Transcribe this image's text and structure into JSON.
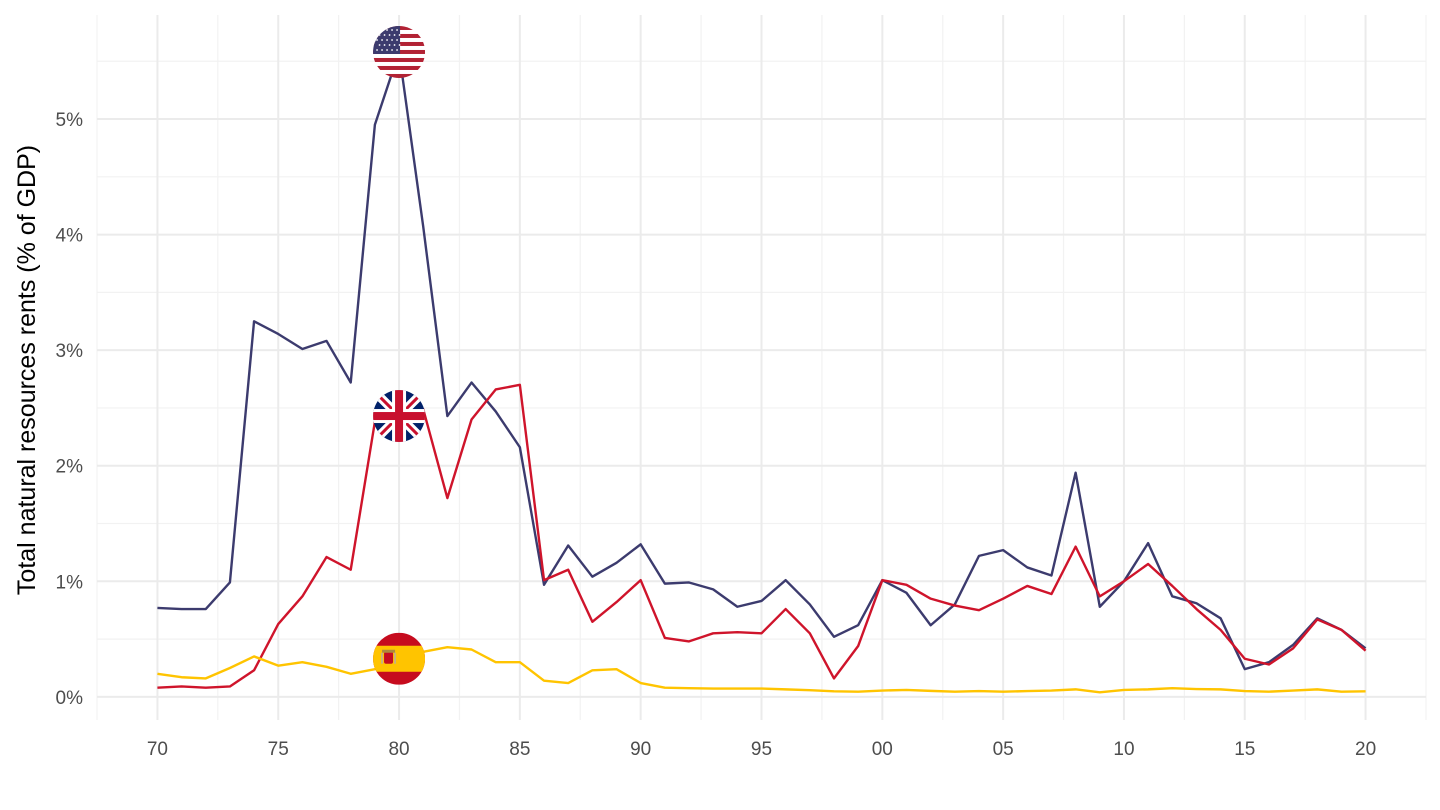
{
  "chart_data": {
    "type": "line",
    "ylabel": "Total natural resources rents (% of GDP)",
    "xlabel": "",
    "x": [
      1970,
      1971,
      1972,
      1973,
      1974,
      1975,
      1976,
      1977,
      1978,
      1979,
      1980,
      1981,
      1982,
      1983,
      1984,
      1985,
      1986,
      1987,
      1988,
      1989,
      1990,
      1991,
      1992,
      1993,
      1994,
      1995,
      1996,
      1997,
      1998,
      1999,
      2000,
      2001,
      2002,
      2003,
      2004,
      2005,
      2006,
      2007,
      2008,
      2009,
      2010,
      2011,
      2012,
      2013,
      2014,
      2015,
      2016,
      2017,
      2018,
      2019,
      2020
    ],
    "xlim": [
      1967.5,
      2022.5
    ],
    "ylim": [
      -0.2,
      5.9
    ],
    "x_ticks": [
      1970,
      1975,
      1980,
      1985,
      1990,
      1995,
      2000,
      2005,
      2010,
      2015,
      2020
    ],
    "x_tick_labels": [
      "70",
      "75",
      "80",
      "85",
      "90",
      "95",
      "00",
      "05",
      "10",
      "15",
      "20"
    ],
    "y_ticks": [
      0,
      1,
      2,
      3,
      4,
      5
    ],
    "y_tick_labels": [
      "0%",
      "1%",
      "2%",
      "3%",
      "4%",
      "5%"
    ],
    "grid": true,
    "legend": "flag icons placed on lines at 1980",
    "flag_x": 1980,
    "series": [
      {
        "flag": "us-flag-icon",
        "color": "#3c3b6e",
        "values": [
          0.77,
          0.76,
          0.76,
          0.99,
          3.25,
          3.14,
          3.01,
          3.08,
          2.72,
          4.95,
          5.58,
          4.07,
          2.43,
          2.72,
          2.47,
          2.16,
          0.97,
          1.31,
          1.04,
          1.16,
          1.32,
          0.98,
          0.99,
          0.93,
          0.78,
          0.83,
          1.01,
          0.8,
          0.52,
          0.62,
          1.01,
          0.9,
          0.62,
          0.8,
          1.22,
          1.27,
          1.12,
          1.05,
          1.94,
          0.78,
          1.0,
          1.33,
          0.87,
          0.81,
          0.68,
          0.24,
          0.3,
          0.45,
          0.68,
          0.58,
          0.42
        ]
      },
      {
        "flag": "uk-flag-icon",
        "color": "#cf142b",
        "values": [
          0.08,
          0.09,
          0.08,
          0.09,
          0.23,
          0.63,
          0.87,
          1.21,
          1.1,
          2.38,
          2.43,
          2.49,
          1.72,
          2.4,
          2.66,
          2.7,
          1.01,
          1.1,
          0.65,
          0.82,
          1.01,
          0.51,
          0.48,
          0.55,
          0.56,
          0.55,
          0.76,
          0.55,
          0.16,
          0.44,
          1.01,
          0.97,
          0.85,
          0.79,
          0.75,
          0.85,
          0.96,
          0.89,
          1.3,
          0.87,
          1.0,
          1.15,
          0.96,
          0.76,
          0.58,
          0.33,
          0.28,
          0.42,
          0.67,
          0.58,
          0.4
        ]
      },
      {
        "flag": "es-flag-icon",
        "color": "#ffc400",
        "values": [
          0.2,
          0.17,
          0.16,
          0.25,
          0.35,
          0.27,
          0.3,
          0.26,
          0.2,
          0.24,
          0.33,
          0.39,
          0.43,
          0.41,
          0.3,
          0.3,
          0.14,
          0.12,
          0.23,
          0.24,
          0.12,
          0.08,
          0.075,
          0.072,
          0.072,
          0.072,
          0.065,
          0.058,
          0.048,
          0.045,
          0.055,
          0.06,
          0.052,
          0.045,
          0.05,
          0.045,
          0.05,
          0.055,
          0.065,
          0.04,
          0.06,
          0.065,
          0.075,
          0.068,
          0.065,
          0.05,
          0.045,
          0.055,
          0.065,
          0.045,
          0.048
        ]
      }
    ]
  }
}
